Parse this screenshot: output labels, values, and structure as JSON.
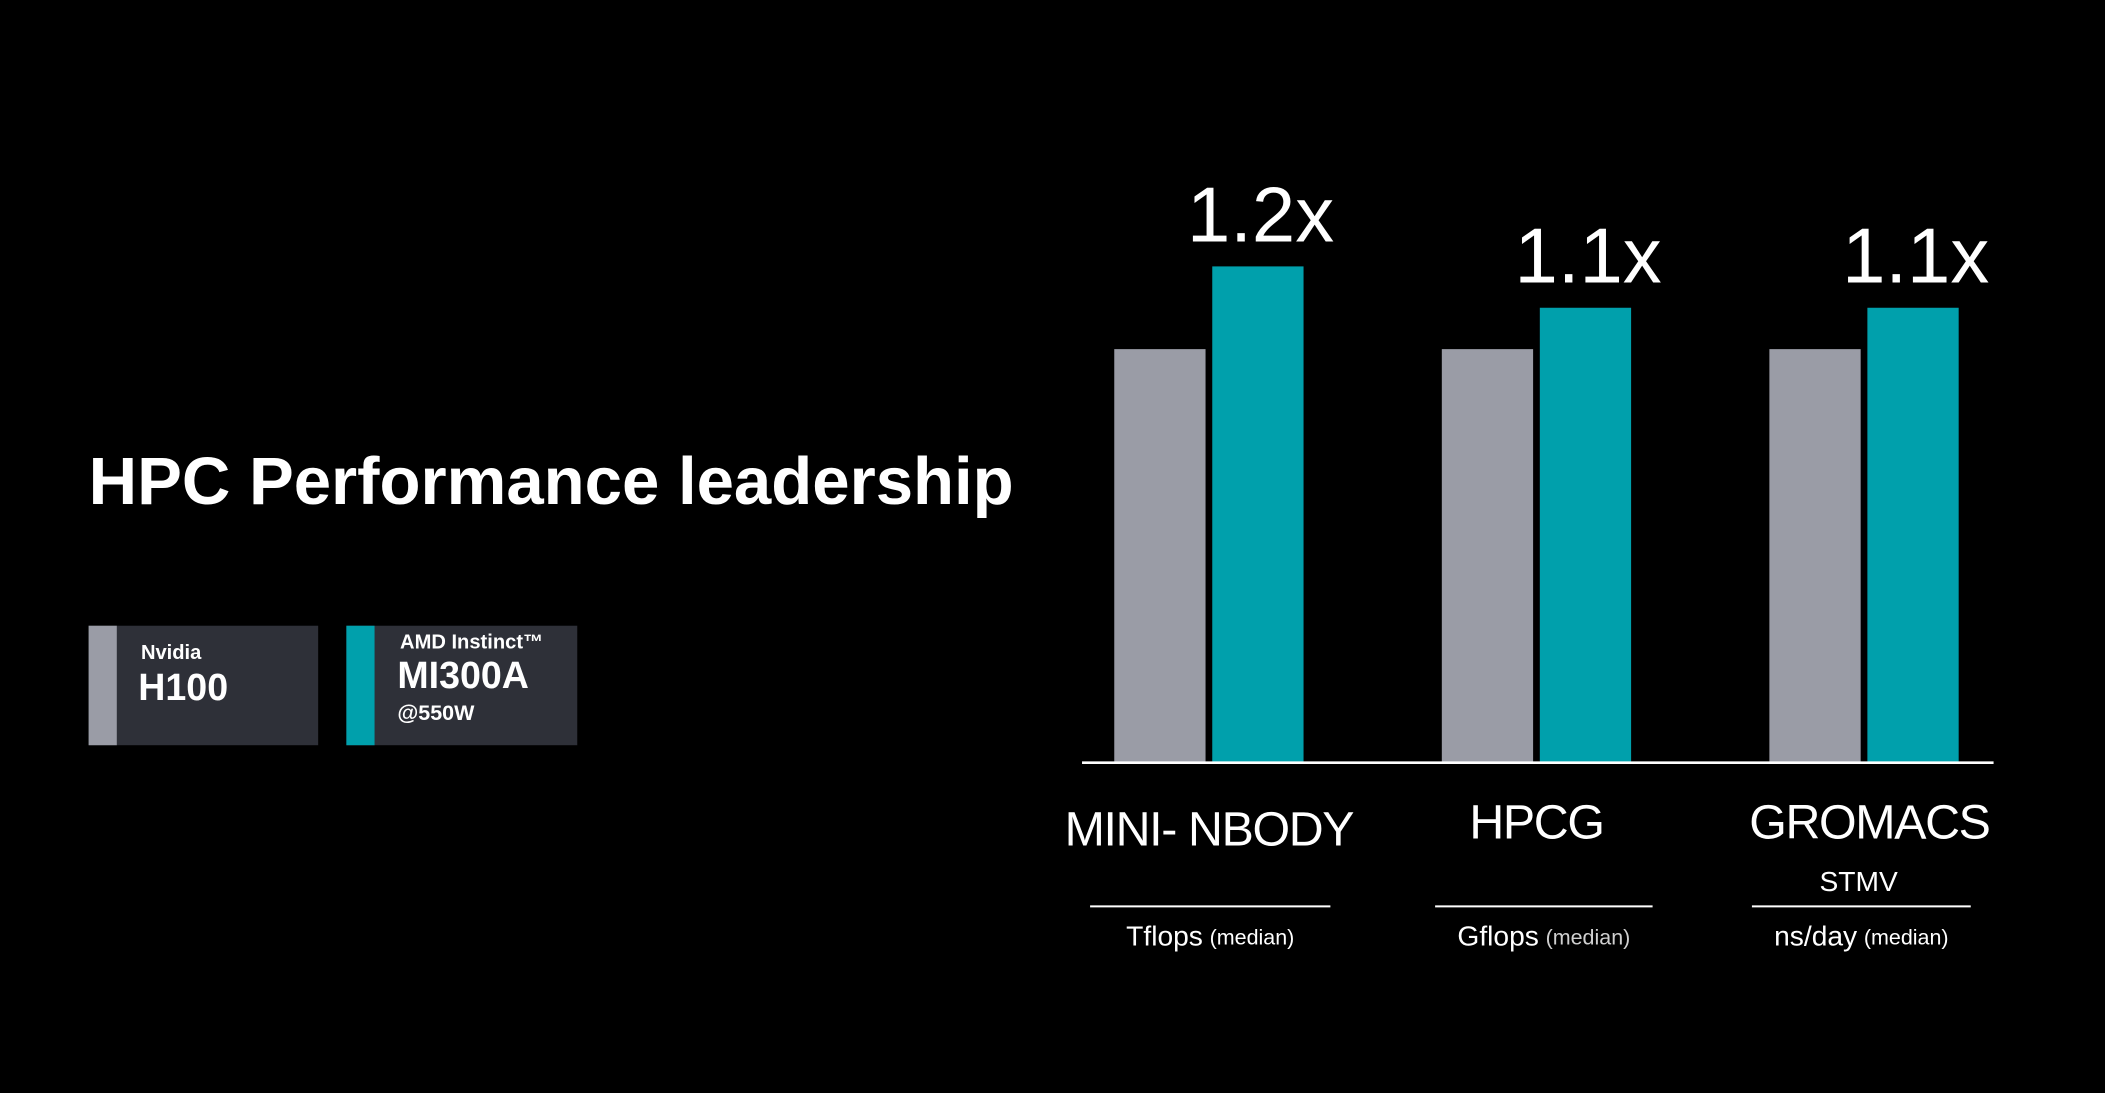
{
  "chart_data": {
    "type": "bar",
    "title": "HPC Performance leadership",
    "categories": [
      "MINI- NBODY",
      "HPCG",
      "GROMACS"
    ],
    "category_details": [
      {
        "unit": "Tflops",
        "qualifier": "(median)"
      },
      {
        "unit": "Gflops",
        "qualifier": "(median)"
      },
      {
        "subtitle": "STMV",
        "unit": "ns/day",
        "qualifier": "(median)"
      }
    ],
    "series": [
      {
        "brand": "Nvidia",
        "name": "H100",
        "color": "#9a9ca6",
        "values": [
          1,
          1,
          1
        ]
      },
      {
        "brand": "AMD Instinct™",
        "name": "MI300A",
        "note": "@550W",
        "color": "#00a0ac",
        "values": [
          1.2,
          1.1,
          1.1
        ],
        "value_labels": [
          "1.2x",
          "1.1x",
          "1.1x"
        ]
      }
    ]
  }
}
